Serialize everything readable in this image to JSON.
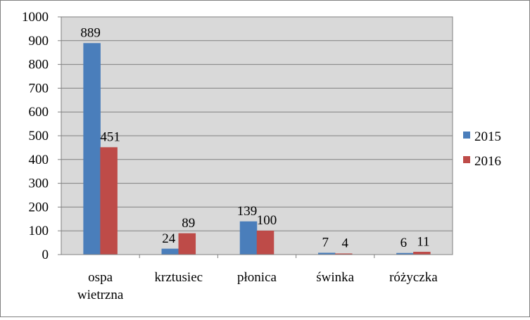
{
  "chart_data": {
    "type": "bar",
    "categories": [
      [
        "ospa",
        "wietrzna"
      ],
      [
        "krztusiec"
      ],
      [
        "płonica"
      ],
      [
        "świnka"
      ],
      [
        "różyczka"
      ]
    ],
    "series": [
      {
        "name": "2015",
        "color": "#4a7ebb",
        "values": [
          889,
          24,
          139,
          7,
          6
        ]
      },
      {
        "name": "2016",
        "color": "#be4b48",
        "values": [
          451,
          89,
          100,
          4,
          11
        ]
      }
    ],
    "ylim": [
      0,
      1000
    ],
    "yticks": [
      0,
      100,
      200,
      300,
      400,
      500,
      600,
      700,
      800,
      900,
      1000
    ],
    "grid": true,
    "legend": "right",
    "plot_background": "#d9d9d9"
  }
}
